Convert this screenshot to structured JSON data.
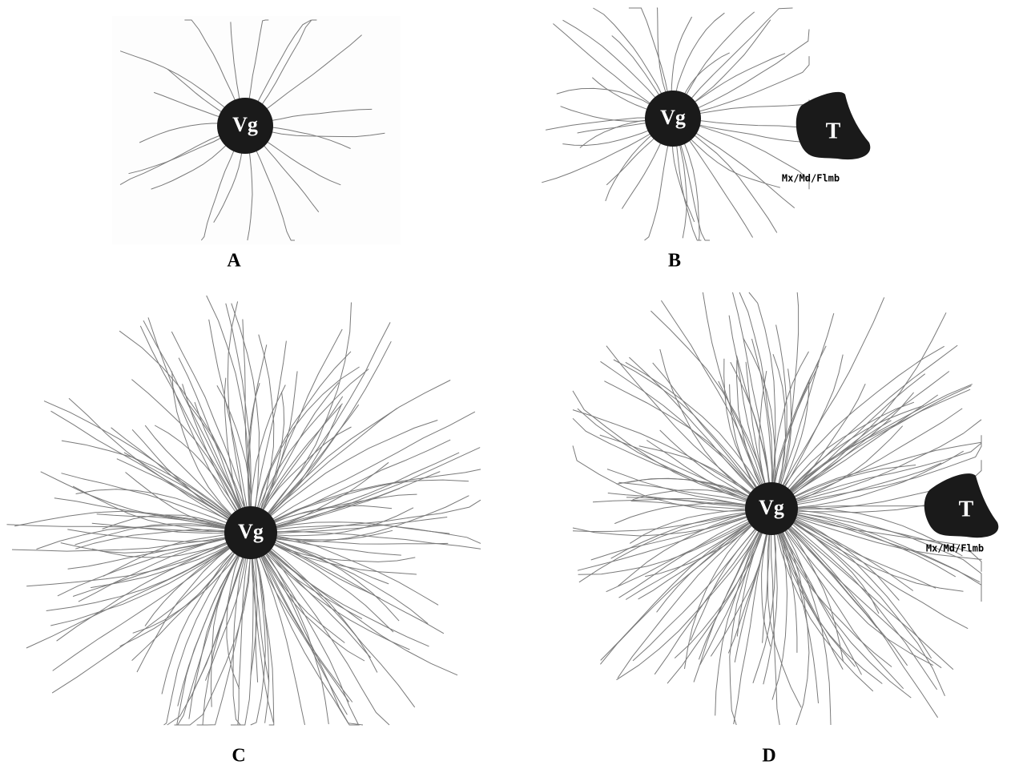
{
  "panels": [
    {
      "label": "A",
      "ganglion": "Vg"
    },
    {
      "label": "B",
      "ganglion": "Vg",
      "target": "T",
      "target_label": "Mx/Md/Flmb"
    },
    {
      "label": "C",
      "ganglion": "Vg"
    },
    {
      "label": "D",
      "ganglion": "Vg",
      "target": "T",
      "target_label": "Mx/Md/Flmb"
    }
  ]
}
